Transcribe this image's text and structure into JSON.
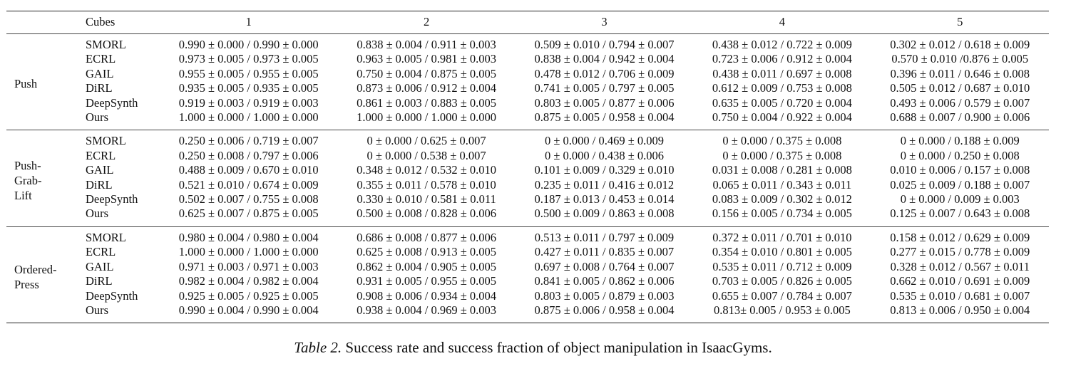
{
  "table": {
    "header": {
      "corner": "",
      "cubes_label": "Cubes",
      "columns": [
        "1",
        "2",
        "3",
        "4",
        "5"
      ]
    },
    "groups": [
      {
        "task": "Push",
        "rows": [
          {
            "method": "SMORL",
            "bold": false,
            "values": [
              "0.990 ± 0.000 / 0.990 ± 0.000",
              "0.838 ± 0.004 / 0.911 ± 0.003",
              "0.509 ± 0.010 / 0.794 ± 0.007",
              "0.438 ± 0.012 / 0.722 ± 0.009",
              "0.302 ± 0.012 / 0.618 ± 0.009"
            ]
          },
          {
            "method": "ECRL",
            "bold": false,
            "values": [
              "0.973 ± 0.005 / 0.973 ± 0.005",
              "0.963 ± 0.005 / 0.981 ± 0.003",
              "0.838 ± 0.004 / 0.942 ± 0.004",
              "0.723 ± 0.006 / 0.912 ± 0.004",
              "0.570 ± 0.010 /0.876 ± 0.005"
            ]
          },
          {
            "method": "GAIL",
            "bold": false,
            "values": [
              "0.955 ± 0.005 / 0.955 ± 0.005",
              "0.750 ± 0.004 / 0.875 ± 0.005",
              "0.478 ± 0.012 / 0.706 ± 0.009",
              "0.438 ± 0.011 / 0.697 ± 0.008",
              "0.396 ± 0.011 / 0.646 ± 0.008"
            ]
          },
          {
            "method": "DiRL",
            "bold": false,
            "values": [
              "0.935 ± 0.005 / 0.935 ± 0.005",
              "0.873 ± 0.006 / 0.912 ± 0.004",
              "0.741 ± 0.005 / 0.797 ± 0.005",
              "0.612 ± 0.009 / 0.753 ± 0.008",
              "0.505 ± 0.012 / 0.687 ± 0.010"
            ]
          },
          {
            "method": "DeepSynth",
            "bold": false,
            "values": [
              "0.919 ± 0.003 / 0.919 ± 0.003",
              "0.861 ± 0.003 / 0.883 ± 0.005",
              "0.803 ± 0.005 / 0.877 ± 0.006",
              "0.635 ± 0.005 / 0.720 ± 0.004",
              "0.493 ± 0.006 / 0.579 ± 0.007"
            ]
          },
          {
            "method": "Ours",
            "bold": true,
            "values": [
              "1.000 ± 0.000 / 1.000 ± 0.000",
              "1.000 ± 0.000 / 1.000 ± 0.000",
              "0.875 ± 0.005 / 0.958 ± 0.004",
              "0.750 ± 0.004 / 0.922 ± 0.004",
              "0.688 ± 0.007 / 0.900 ± 0.006"
            ]
          }
        ]
      },
      {
        "task": "Push-\nGrab-\nLift",
        "rows": [
          {
            "method": "SMORL",
            "bold": false,
            "values": [
              "0.250 ± 0.006 / 0.719 ± 0.007",
              "0 ± 0.000 / 0.625 ± 0.007",
              "0 ± 0.000 / 0.469 ± 0.009",
              "0 ± 0.000 / 0.375 ± 0.008",
              "0 ± 0.000 / 0.188 ± 0.009"
            ]
          },
          {
            "method": "ECRL",
            "bold": false,
            "values": [
              "0.250 ± 0.008 / 0.797 ± 0.006",
              "0 ± 0.000 / 0.538 ± 0.007",
              "0 ± 0.000 / 0.438 ± 0.006",
              "0 ± 0.000 / 0.375 ± 0.008",
              "0 ± 0.000 / 0.250 ± 0.008"
            ]
          },
          {
            "method": "GAIL",
            "bold": false,
            "values": [
              "0.488 ± 0.009 / 0.670 ± 0.010",
              "0.348 ± 0.012 / 0.532 ± 0.010",
              "0.101 ± 0.009 / 0.329 ± 0.010",
              "0.031 ± 0.008 / 0.281 ± 0.008",
              "0.010 ± 0.006 / 0.157 ± 0.008"
            ]
          },
          {
            "method": "DiRL",
            "bold": false,
            "values": [
              "0.521 ± 0.010 / 0.674 ± 0.009",
              "0.355 ± 0.011 / 0.578 ± 0.010",
              "0.235 ± 0.011 / 0.416 ± 0.012",
              "0.065 ± 0.011 / 0.343 ± 0.011",
              "0.025 ± 0.009 / 0.188 ± 0.007"
            ]
          },
          {
            "method": "DeepSynth",
            "bold": false,
            "values": [
              "0.502 ± 0.007 / 0.755 ± 0.008",
              "0.330 ± 0.010 / 0.581 ± 0.011",
              "0.187 ± 0.013 / 0.453 ± 0.014",
              "0.083 ± 0.009 / 0.302 ± 0.012",
              "0 ± 0.000 / 0.009 ± 0.003"
            ]
          },
          {
            "method": "Ours",
            "bold": true,
            "values": [
              "0.625 ± 0.007 / 0.875 ± 0.005",
              "0.500 ± 0.008 / 0.828 ± 0.006",
              "0.500 ± 0.009 / 0.863 ± 0.008",
              "0.156 ± 0.005 / 0.734 ± 0.005",
              "0.125 ± 0.007 / 0.643 ± 0.008"
            ]
          }
        ]
      },
      {
        "task": "Ordered-\nPress",
        "rows": [
          {
            "method": "SMORL",
            "bold": false,
            "values": [
              "0.980 ± 0.004 / 0.980 ± 0.004",
              "0.686 ± 0.008 / 0.877 ± 0.006",
              "0.513 ± 0.011 / 0.797 ± 0.009",
              "0.372 ± 0.011 / 0.701 ± 0.010",
              "0.158 ± 0.012 / 0.629 ± 0.009"
            ]
          },
          {
            "method": "ECRL",
            "bold": false,
            "boldCols": [
              0
            ],
            "values": [
              "1.000 ± 0.000 / 1.000 ± 0.000",
              "0.625 ± 0.008 / 0.913 ± 0.005",
              "0.427 ± 0.011 / 0.835 ± 0.007",
              "0.354 ± 0.010 / 0.801 ± 0.005",
              "0.277 ± 0.015 / 0.778 ± 0.009"
            ]
          },
          {
            "method": "GAIL",
            "bold": false,
            "values": [
              "0.971 ± 0.003 / 0.971 ± 0.003",
              "0.862 ± 0.004 / 0.905 ± 0.005",
              "0.697 ± 0.008 / 0.764 ± 0.007",
              "0.535 ± 0.011 / 0.712 ± 0.009",
              "0.328 ± 0.012 / 0.567 ± 0.011"
            ]
          },
          {
            "method": "DiRL",
            "bold": false,
            "values": [
              "0.982 ± 0.004 / 0.982 ± 0.004",
              "0.931 ± 0.005 / 0.955 ± 0.005",
              "0.841 ± 0.005 / 0.862 ± 0.006",
              "0.703 ± 0.005 / 0.826 ± 0.005",
              "0.662 ± 0.010 / 0.691 ± 0.009"
            ]
          },
          {
            "method": "DeepSynth",
            "bold": false,
            "values": [
              "0.925 ± 0.005 / 0.925 ± 0.005",
              "0.908 ± 0.006 / 0.934 ± 0.004",
              "0.803 ± 0.005 / 0.879 ± 0.003",
              "0.655 ± 0.007 / 0.784 ± 0.007",
              "0.535 ± 0.010 / 0.681 ± 0.007"
            ]
          },
          {
            "method": "Ours",
            "bold": true,
            "boldCols": [
              1,
              2,
              3,
              4
            ],
            "values": [
              "0.990 ± 0.004 / 0.990 ± 0.004",
              "0.938 ± 0.004 / 0.969 ± 0.003",
              "0.875 ± 0.006 / 0.958 ± 0.004",
              "0.813± 0.005 / 0.953 ± 0.005",
              "0.813 ± 0.006 / 0.950 ± 0.004"
            ]
          }
        ]
      }
    ]
  },
  "caption": {
    "label": "Table 2.",
    "text": " Success rate and success fraction of object manipulation in IsaacGyms."
  }
}
